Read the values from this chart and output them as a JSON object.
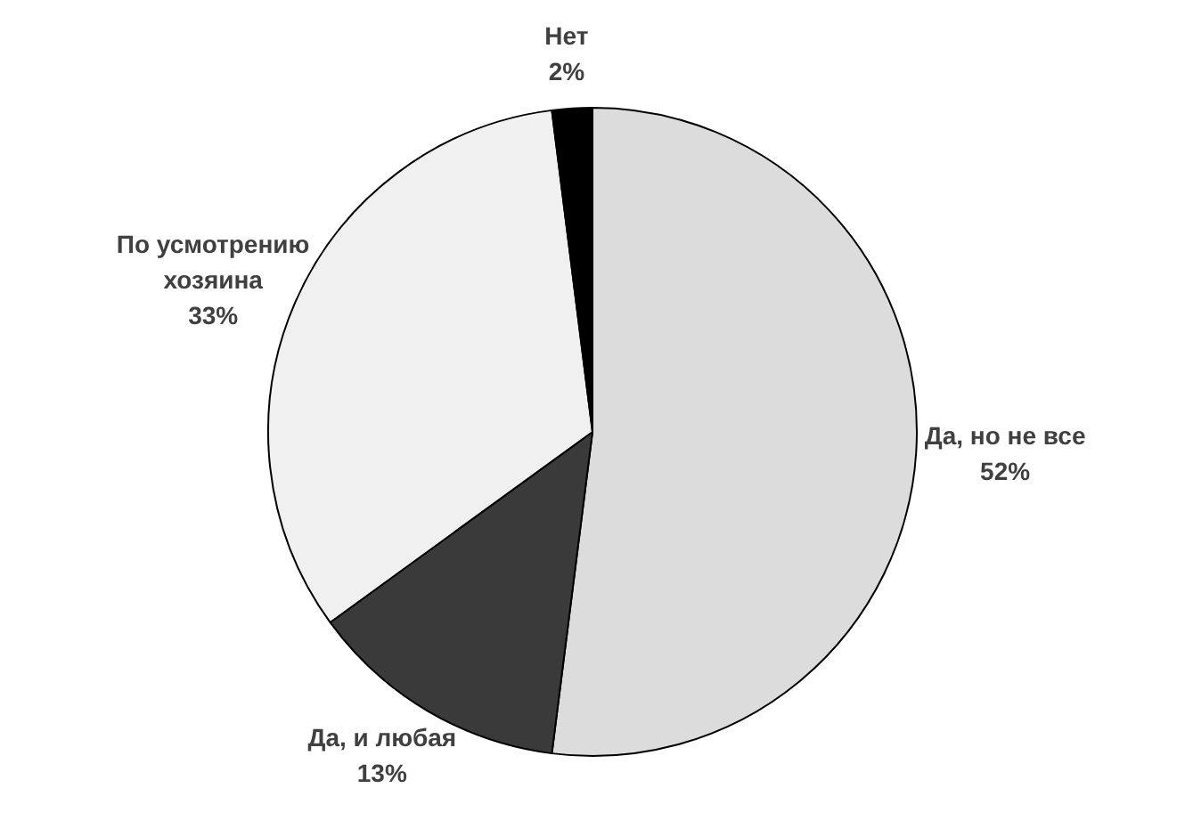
{
  "chart_data": {
    "type": "pie",
    "categories": [
      "Да, но не все",
      "Да, и любая",
      "По усмотрению хозяина",
      "Нет"
    ],
    "values": [
      52,
      13,
      33,
      2
    ],
    "value_labels": [
      "52%",
      "13%",
      "33%",
      "2%"
    ],
    "colors": [
      "#dcdcdc",
      "#3a3a3a",
      "#f0f0f0",
      "#000000"
    ],
    "legend": false
  }
}
